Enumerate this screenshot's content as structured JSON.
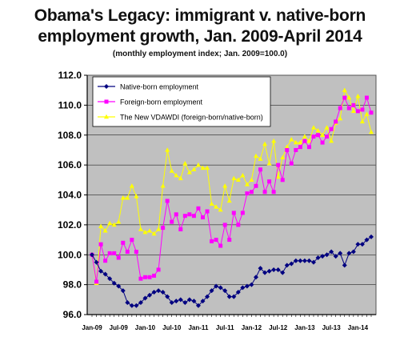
{
  "title_line1": "Obama's Legacy: immigrant v. native-born",
  "title_line2": "employment growth, Jan. 2009-April 2014",
  "subtitle": "(monthly employment index; Jan. 2009=100.0)",
  "colors": {
    "plot_bg": "#c0c0c0",
    "native": "#000080",
    "foreign": "#ff00ff",
    "ratio": "#ffff00",
    "legend_bg": "#ffffff",
    "axis": "#000000"
  },
  "chart_data": {
    "type": "line",
    "title": "Obama's Legacy: immigrant v. native-born employment growth, Jan. 2009-April 2014",
    "subtitle": "(monthly employment index; Jan. 2009=100.0)",
    "xlabel": "",
    "ylabel": "",
    "ylim": [
      96.0,
      112.0
    ],
    "yticks": [
      "96.0",
      "98.0",
      "100.0",
      "102.0",
      "104.0",
      "106.0",
      "108.0",
      "110.0",
      "112.0"
    ],
    "x_tick_labels": [
      "Jan-09",
      "Jul-09",
      "Jan-10",
      "Jul-10",
      "Jan-11",
      "Jul-11",
      "Jan-12",
      "Jul-12",
      "Jan-13",
      "Jul-13",
      "Jan-14"
    ],
    "x_tick_months": [
      0,
      6,
      12,
      18,
      24,
      30,
      36,
      42,
      48,
      54,
      60
    ],
    "month_count": 64,
    "grid": true,
    "legend_position": "top-left",
    "series": [
      {
        "name": "Native-born employment",
        "marker": "diamond",
        "values": [
          100.0,
          99.5,
          98.9,
          98.7,
          98.4,
          98.1,
          97.9,
          97.6,
          96.8,
          96.6,
          96.6,
          96.8,
          97.1,
          97.3,
          97.5,
          97.6,
          97.5,
          97.2,
          96.8,
          96.9,
          97.0,
          96.8,
          97.0,
          96.9,
          96.6,
          96.9,
          97.2,
          97.6,
          97.9,
          97.8,
          97.6,
          97.2,
          97.2,
          97.5,
          97.8,
          97.9,
          98.0,
          98.5,
          99.1,
          98.8,
          98.9,
          99.0,
          99.0,
          98.8,
          99.3,
          99.4,
          99.6,
          99.6,
          99.6,
          99.6,
          99.5,
          99.8,
          99.9,
          100.0,
          100.2,
          99.9,
          100.1,
          99.3,
          100.1,
          100.2,
          100.7,
          100.7,
          101.0,
          101.2
        ]
      },
      {
        "name": "Foreign-born employment",
        "marker": "square",
        "values": [
          100.0,
          98.2,
          100.7,
          99.6,
          100.1,
          100.1,
          99.8,
          100.8,
          100.2,
          101.0,
          100.2,
          98.4,
          98.5,
          98.5,
          98.6,
          99.0,
          101.8,
          103.6,
          102.2,
          102.7,
          101.7,
          102.6,
          102.7,
          102.6,
          103.1,
          102.5,
          102.9,
          100.9,
          101.0,
          100.6,
          102.0,
          101.0,
          102.8,
          102.0,
          102.8,
          104.1,
          104.2,
          104.6,
          105.7,
          104.2,
          104.9,
          104.2,
          106.0,
          105.0,
          107.0,
          106.1,
          107.0,
          107.2,
          107.6,
          107.2,
          107.9,
          108.0,
          107.5,
          107.9,
          108.4,
          108.9,
          109.8,
          110.5,
          109.8,
          110.0,
          109.6,
          109.7,
          110.5,
          109.5
        ]
      },
      {
        "name": "The New VDAWDI  (foreign-born/native-born)",
        "marker": "triangle",
        "values": [
          100.0,
          98.1,
          101.9,
          101.6,
          102.1,
          102.0,
          102.2,
          103.8,
          103.8,
          104.6,
          103.9,
          101.7,
          101.5,
          101.6,
          101.4,
          101.7,
          104.6,
          107.0,
          105.6,
          105.3,
          105.1,
          106.1,
          105.5,
          105.7,
          106.0,
          105.8,
          105.8,
          103.4,
          103.2,
          103.0,
          104.6,
          103.6,
          105.1,
          105.0,
          105.3,
          104.7,
          105.0,
          106.6,
          106.4,
          107.4,
          106.1,
          107.6,
          105.2,
          106.5,
          107.2,
          107.7,
          107.5,
          107.5,
          107.9,
          107.6,
          108.5,
          108.3,
          108.0,
          108.5,
          107.6,
          108.8,
          109.1,
          111.0,
          110.5,
          109.6,
          110.6,
          108.9,
          109.4,
          108.2
        ]
      }
    ]
  }
}
